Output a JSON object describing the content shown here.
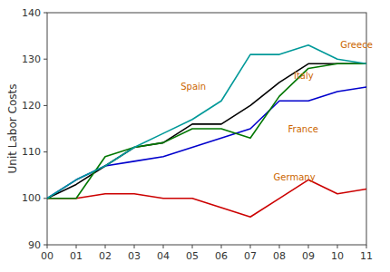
{
  "chart_data": {
    "type": "line",
    "y_label": "Unit Labor Costs",
    "x": [
      0,
      1,
      2,
      3,
      4,
      5,
      6,
      7,
      8,
      9,
      10,
      11
    ],
    "series": [
      {
        "name": "France",
        "color": "#0000cc",
        "values": [
          100,
          104,
          107,
          108,
          109,
          111,
          113,
          115,
          121,
          121,
          123,
          124
        ]
      },
      {
        "name": "Germany",
        "color": "#cc0000",
        "values": [
          100,
          100,
          101,
          101,
          100,
          100,
          98,
          96,
          100,
          104,
          101,
          102
        ]
      },
      {
        "name": "Italy",
        "color": "#000000",
        "values": [
          100,
          103,
          107,
          111,
          112,
          116,
          116,
          120,
          125,
          129,
          129,
          129
        ]
      },
      {
        "name": "Spain",
        "color": "#007700",
        "values": [
          100,
          100,
          109,
          111,
          112,
          115,
          115,
          113,
          122,
          128,
          129,
          129
        ]
      },
      {
        "name": "Greece",
        "color": "#009999",
        "values": [
          100,
          104,
          107,
          111,
          114,
          117,
          121,
          131,
          131,
          133,
          130,
          129
        ]
      }
    ],
    "annotations": [
      {
        "text": "Greece",
        "x": 10.1,
        "y": 133,
        "color": "#cc6600"
      },
      {
        "text": "Spain",
        "x": 4.6,
        "y": 124,
        "color": "#cc6600"
      },
      {
        "text": "Italy",
        "x": 8.5,
        "y": 126.5,
        "color": "#cc6600"
      },
      {
        "text": "France",
        "x": 8.3,
        "y": 115,
        "color": "#cc6600"
      },
      {
        "text": "Germany",
        "x": 7.8,
        "y": 104.5,
        "color": "#cc6600"
      }
    ],
    "xlim": [
      0,
      11
    ],
    "ylim": [
      90,
      140
    ],
    "xticks": [
      {
        "value": 0,
        "label": "00"
      },
      {
        "value": 1,
        "label": "01"
      },
      {
        "value": 2,
        "label": "02"
      },
      {
        "value": 3,
        "label": "03"
      },
      {
        "value": 4,
        "label": "04"
      },
      {
        "value": 5,
        "label": "05"
      },
      {
        "value": 6,
        "label": "06"
      },
      {
        "value": 7,
        "label": "07"
      },
      {
        "value": 8,
        "label": "08"
      },
      {
        "value": 9,
        "label": "09"
      },
      {
        "value": 10,
        "label": "10"
      },
      {
        "value": 11,
        "label": "11"
      }
    ],
    "yticks": [
      90,
      100,
      110,
      120,
      130,
      140
    ],
    "grid": false
  }
}
